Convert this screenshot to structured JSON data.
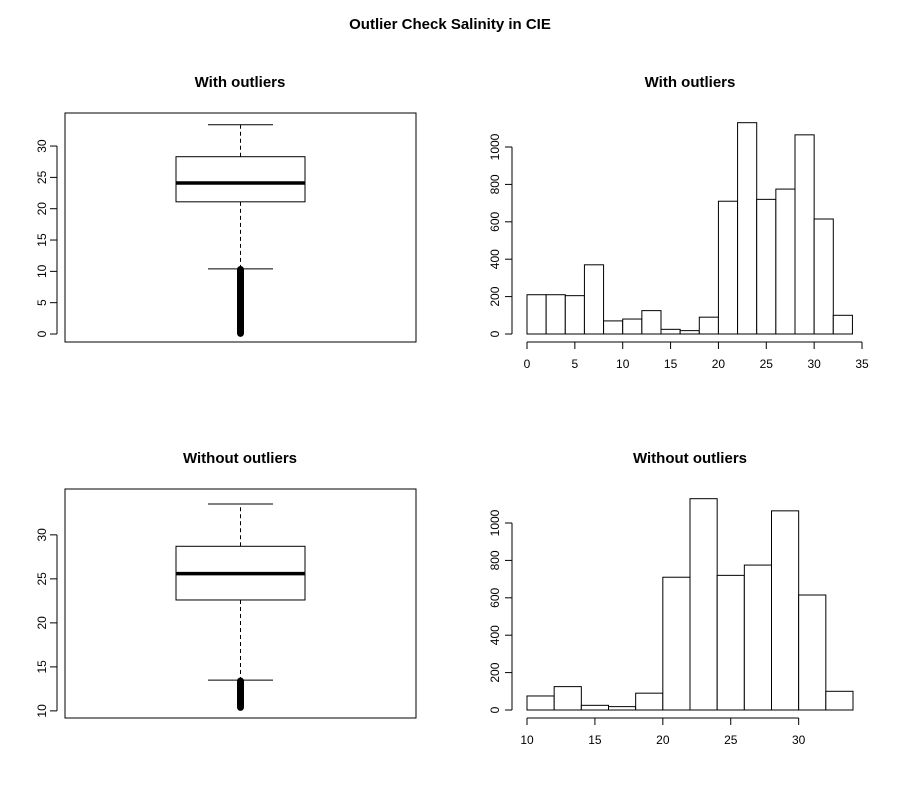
{
  "figure": {
    "title": "Outlier Check Salinity in CIE"
  },
  "chart_data": [
    {
      "type": "boxplot",
      "title": "With outliers",
      "xlabel": "",
      "ylabel": "",
      "ylim": [
        0,
        34
      ],
      "yticks": [
        0,
        5,
        10,
        15,
        20,
        25,
        30
      ],
      "box": {
        "whisker_low": 10.4,
        "q1": 21.1,
        "median": 24.1,
        "q3": 28.3,
        "whisker_high": 33.4
      },
      "outliers_range": [
        0.1,
        10.3
      ]
    },
    {
      "type": "bar",
      "subtype": "histogram",
      "title": "With outliers",
      "xlabel": "",
      "ylabel": "",
      "xlim": [
        0,
        35
      ],
      "ylim": [
        0,
        1150
      ],
      "xticks": [
        0,
        5,
        10,
        15,
        20,
        25,
        30,
        35
      ],
      "yticks": [
        0,
        200,
        400,
        600,
        800,
        1000
      ],
      "bins": [
        [
          0,
          2
        ],
        [
          2,
          4
        ],
        [
          4,
          6
        ],
        [
          6,
          8
        ],
        [
          8,
          10
        ],
        [
          10,
          12
        ],
        [
          12,
          14
        ],
        [
          14,
          16
        ],
        [
          16,
          18
        ],
        [
          18,
          20
        ],
        [
          20,
          22
        ],
        [
          22,
          24
        ],
        [
          24,
          26
        ],
        [
          26,
          28
        ],
        [
          28,
          30
        ],
        [
          30,
          32
        ],
        [
          32,
          34
        ]
      ],
      "values": [
        210,
        210,
        205,
        370,
        70,
        80,
        125,
        25,
        18,
        90,
        710,
        1130,
        720,
        775,
        1065,
        615,
        100
      ]
    },
    {
      "type": "boxplot",
      "title": "Without outliers",
      "xlabel": "",
      "ylabel": "",
      "ylim": [
        10.1,
        34.3
      ],
      "yticks": [
        10,
        15,
        20,
        25,
        30
      ],
      "box": {
        "whisker_low": 13.5,
        "q1": 22.6,
        "median": 25.6,
        "q3": 28.7,
        "whisker_high": 33.5
      },
      "outliers_range": [
        10.4,
        13.4
      ]
    },
    {
      "type": "bar",
      "subtype": "histogram",
      "title": "Without outliers",
      "xlabel": "",
      "ylabel": "",
      "xlim": [
        10,
        34
      ],
      "ylim": [
        0,
        1150
      ],
      "xticks": [
        10,
        15,
        20,
        25,
        30
      ],
      "yticks": [
        0,
        200,
        400,
        600,
        800,
        1000
      ],
      "bins": [
        [
          10,
          12
        ],
        [
          12,
          14
        ],
        [
          14,
          16
        ],
        [
          16,
          18
        ],
        [
          18,
          20
        ],
        [
          20,
          22
        ],
        [
          22,
          24
        ],
        [
          24,
          26
        ],
        [
          26,
          28
        ],
        [
          28,
          30
        ],
        [
          30,
          32
        ],
        [
          32,
          34
        ]
      ],
      "values": [
        75,
        125,
        25,
        18,
        90,
        710,
        1130,
        720,
        775,
        1065,
        615,
        100
      ]
    }
  ]
}
